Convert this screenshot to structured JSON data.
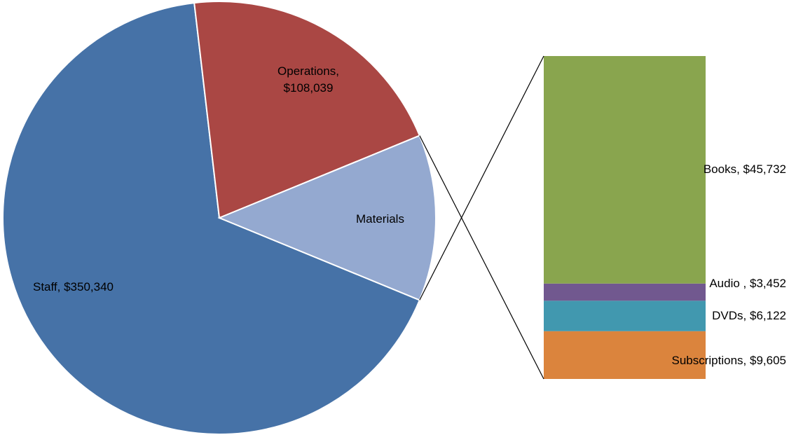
{
  "chart_data": {
    "type": "bar-of-pie",
    "categories": [
      "Staff",
      "Operations",
      "Materials"
    ],
    "values": [
      350340,
      108039,
      64911
    ],
    "value_labels": [
      "Staff, $350,340",
      "Operations, $108,039",
      null
    ],
    "colors": [
      "#4672a7",
      "#aa4744",
      "#94a9d0"
    ],
    "bar": {
      "categories": [
        "Subscriptions",
        "DVDs",
        "Audio",
        "Books"
      ],
      "values": [
        9605,
        6122,
        3452,
        45732
      ],
      "value_labels": [
        "Subscriptions, $9,605",
        "DVDs, $6,122",
        "Audio , $3,452",
        "Books, $45,732"
      ],
      "colors": [
        "#db843d",
        "#4198af",
        "#71588f",
        "#89a54e"
      ]
    }
  }
}
